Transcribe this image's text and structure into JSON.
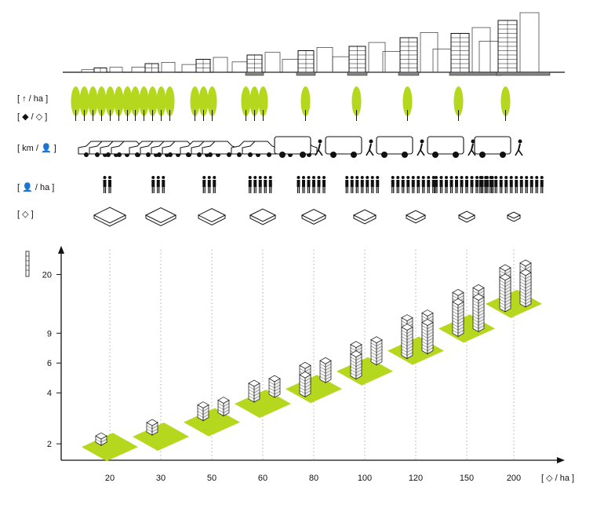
{
  "colors": {
    "accent": "#b5d81e",
    "ink": "#111111",
    "ground": "#888888",
    "grid": "#9a9a9a"
  },
  "rows": {
    "trees": {
      "label": "[ ↑ / ha ]",
      "icon": "tree-icon"
    },
    "green_per_unit": {
      "label": "[ ◆ / ◇ ]",
      "icon": "green-area-icon"
    },
    "mobility": {
      "label": "[ km / 👤 ]",
      "icon": "person-icon"
    },
    "people": {
      "label": "[ 👤 / ha ]",
      "icon": "person-icon"
    },
    "unit": {
      "label": "[ ◇ ]",
      "icon": "housing-unit-icon"
    }
  },
  "chart_data": {
    "type": "scatter",
    "title": "",
    "xlabel": "[ ◇ / ha ]",
    "ylabel": "",
    "categories": [
      "20",
      "30",
      "50",
      "60",
      "80",
      "100",
      "120",
      "150",
      "200"
    ],
    "y_ticks": [
      2,
      4,
      6,
      9,
      20
    ],
    "y_scale": "log",
    "series": [
      {
        "values": [
          2,
          2.3,
          2.8,
          3.6,
          4.4,
          5.6,
          7.4,
          10,
          14
        ]
      }
    ],
    "grid": "vertical dotted",
    "mark": "isometric building block on green plot"
  },
  "columns": {
    "trees": [
      7,
      5,
      3,
      3,
      1,
      1,
      1,
      1,
      1
    ],
    "cars": [
      4,
      4,
      3,
      2,
      1,
      0,
      0,
      0,
      0
    ],
    "people": [
      2,
      3,
      3,
      5,
      6,
      7,
      9,
      12,
      13
    ],
    "unit_scale": [
      1.0,
      0.95,
      0.85,
      0.8,
      0.75,
      0.7,
      0.6,
      0.5,
      0.4
    ],
    "skyline_storeys": [
      1,
      2,
      3,
      4,
      5,
      6,
      8,
      9,
      12
    ]
  }
}
